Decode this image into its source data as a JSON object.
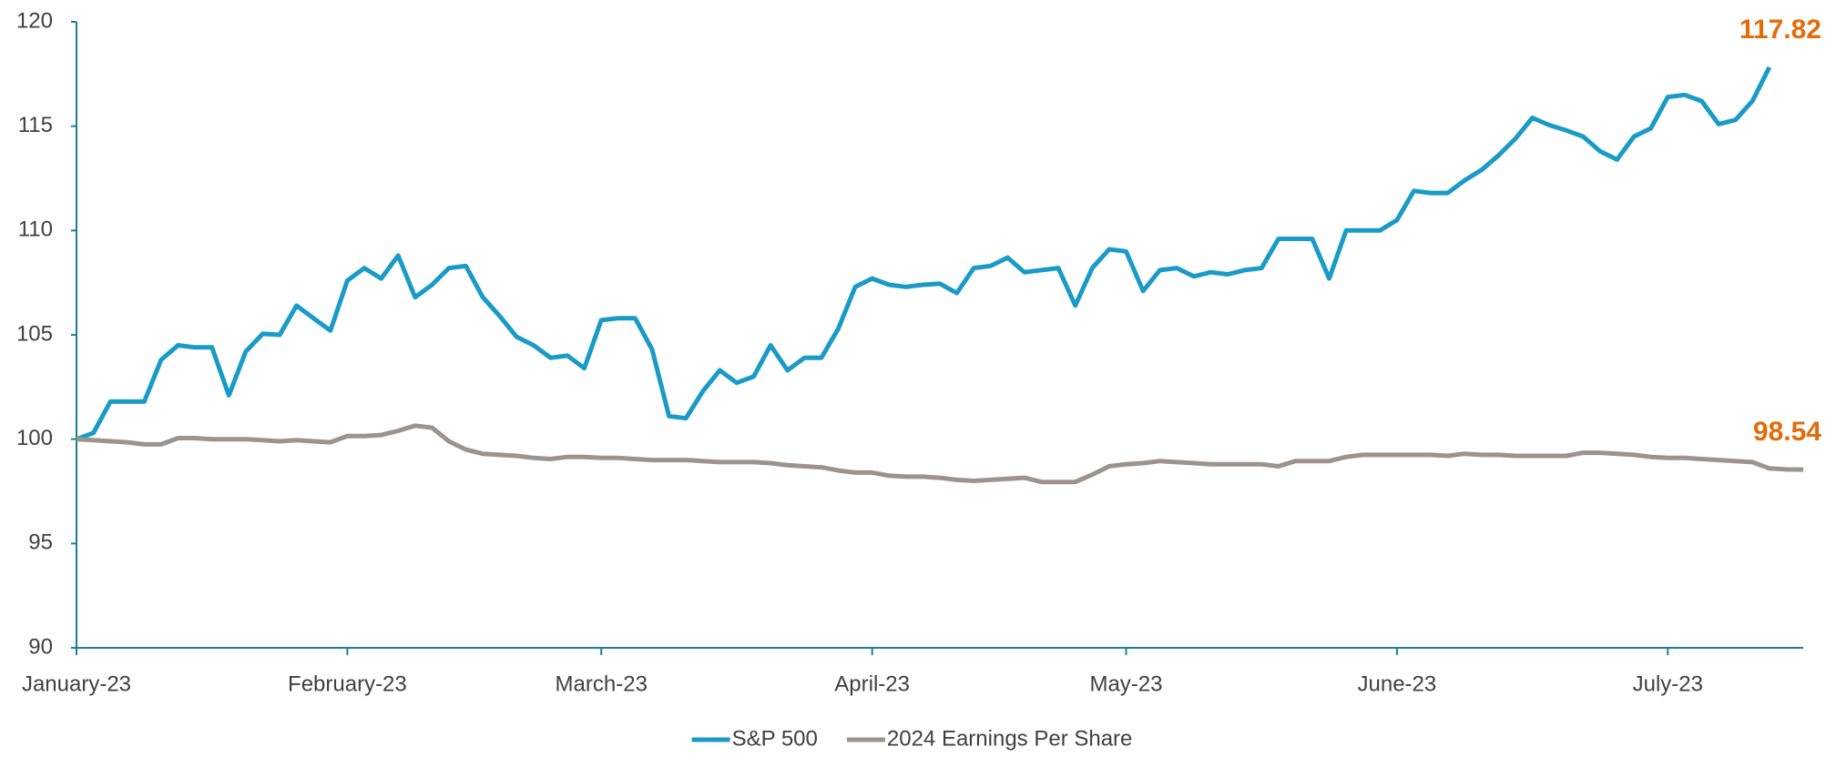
{
  "chart_data": {
    "type": "line",
    "categories": [
      "January-23",
      null,
      null,
      null,
      null,
      null,
      null,
      null,
      null,
      null,
      null,
      null,
      null,
      null,
      null,
      null,
      "February-23",
      null,
      null,
      null,
      null,
      null,
      null,
      null,
      null,
      null,
      null,
      null,
      null,
      null,
      null,
      "March-23",
      null,
      null,
      null,
      null,
      null,
      null,
      null,
      null,
      null,
      null,
      null,
      null,
      null,
      null,
      null,
      "April-23",
      null,
      null,
      null,
      null,
      null,
      null,
      null,
      null,
      null,
      null,
      null,
      null,
      null,
      null,
      "May-23",
      null,
      null,
      null,
      null,
      null,
      null,
      null,
      null,
      null,
      null,
      null,
      null,
      null,
      null,
      null,
      "June-23",
      null,
      null,
      null,
      null,
      null,
      null,
      null,
      null,
      null,
      null,
      null,
      null,
      null,
      null,
      null,
      "July-23",
      null,
      null,
      null,
      null,
      null,
      null,
      null,
      null
    ],
    "series": [
      {
        "name": "S&P 500",
        "color": "#1a9bc7",
        "values": [
          100.0,
          100.3,
          101.8,
          101.8,
          101.8,
          103.8,
          104.5,
          104.4,
          104.4,
          102.1,
          104.2,
          105.05,
          105.0,
          106.4,
          105.8,
          105.2,
          107.6,
          108.2,
          107.7,
          108.8,
          106.8,
          107.4,
          108.2,
          108.3,
          106.8,
          105.9,
          104.9,
          104.5,
          103.9,
          104.0,
          103.4,
          105.7,
          105.8,
          105.8,
          104.3,
          101.1,
          101.0,
          102.3,
          103.3,
          102.7,
          103.0,
          104.5,
          103.3,
          103.9,
          103.9,
          105.3,
          107.3,
          107.7,
          107.4,
          107.3,
          107.4,
          107.45,
          107.0,
          108.2,
          108.3,
          108.7,
          108.0,
          108.1,
          108.2,
          106.4,
          108.2,
          109.1,
          109.0,
          107.1,
          108.1,
          108.2,
          107.8,
          108.0,
          107.9,
          108.1,
          108.2,
          109.6,
          109.6,
          109.6,
          107.7,
          110.0,
          110.0,
          110.0,
          110.5,
          111.9,
          111.8,
          111.8,
          112.4,
          112.9,
          113.6,
          114.4,
          115.4,
          115.05,
          114.8,
          114.5,
          113.8,
          113.4,
          114.5,
          114.9,
          116.4,
          116.5,
          116.2,
          115.1,
          115.3,
          116.2,
          117.82,
          null,
          null
        ]
      },
      {
        "name": "2024 Earnings Per Share",
        "color": "#9d938a",
        "values": [
          100.0,
          99.95,
          99.9,
          99.85,
          99.75,
          99.75,
          100.05,
          100.05,
          100.0,
          100.0,
          100.0,
          99.95,
          99.9,
          99.95,
          99.9,
          99.85,
          100.15,
          100.15,
          100.2,
          100.4,
          100.65,
          100.55,
          99.9,
          99.5,
          99.3,
          99.25,
          99.2,
          99.1,
          99.05,
          99.15,
          99.15,
          99.1,
          99.1,
          99.05,
          99.0,
          99.0,
          99.0,
          98.95,
          98.9,
          98.9,
          98.9,
          98.85,
          98.75,
          98.7,
          98.65,
          98.5,
          98.4,
          98.4,
          98.25,
          98.2,
          98.2,
          98.15,
          98.05,
          98.0,
          98.05,
          98.1,
          98.15,
          97.95,
          97.95,
          97.95,
          98.3,
          98.7,
          98.8,
          98.85,
          98.95,
          98.9,
          98.85,
          98.8,
          98.8,
          98.8,
          98.8,
          98.7,
          98.95,
          98.95,
          98.95,
          99.15,
          99.25,
          99.25,
          99.25,
          99.25,
          99.25,
          99.2,
          99.3,
          99.25,
          99.25,
          99.2,
          99.2,
          99.2,
          99.2,
          99.35,
          99.35,
          99.3,
          99.25,
          99.15,
          99.1,
          99.1,
          99.05,
          99.0,
          98.95,
          98.9,
          98.6,
          98.55,
          98.54
        ]
      }
    ],
    "ylim": [
      90,
      120
    ],
    "yticks": [
      90,
      95,
      100,
      105,
      110,
      115,
      120
    ],
    "grid": false,
    "axis_color": "#1b7f96",
    "label_color": "#e36c0a"
  }
}
